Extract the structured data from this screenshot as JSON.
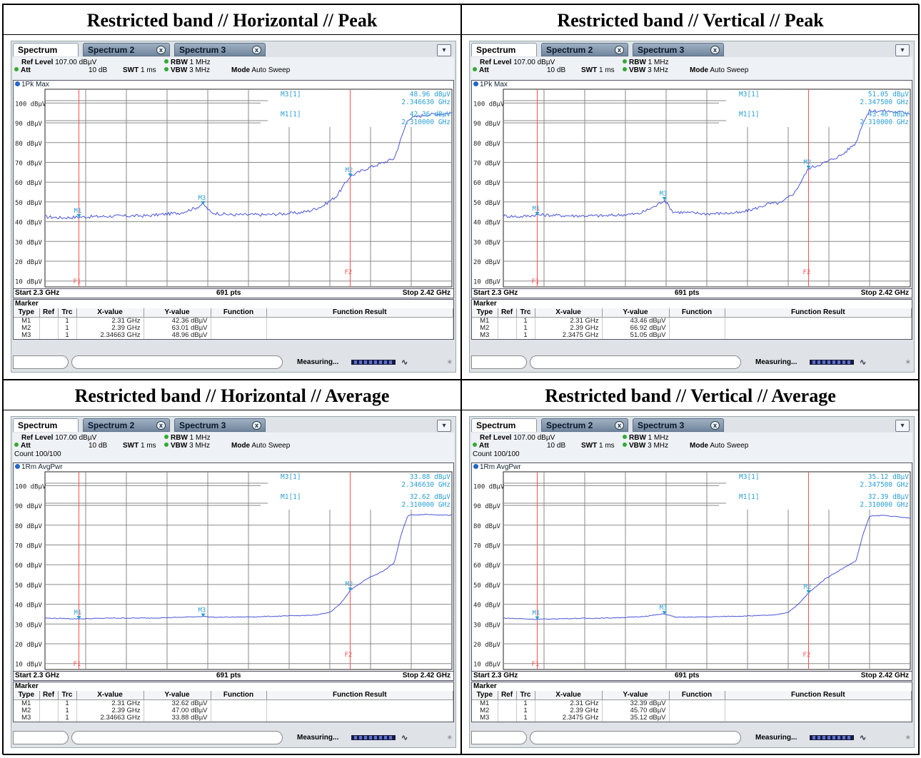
{
  "panels": [
    {
      "title": "Restricted band // Horizontal // Peak",
      "tabs": [
        "Spectrum",
        "Spectrum 2",
        "Spectrum 3"
      ],
      "ref_level": "107.00 dBµV",
      "att": "10 dB",
      "swt": "1 ms",
      "rbw": "1 MHz",
      "vbw": "3 MHz",
      "mode": "Auto Sweep",
      "count": "",
      "trace_label": "1Pk Max",
      "marker_info": [
        {
          "name": "M3[1]",
          "y": "48.96 dBµV",
          "x": "2.346630 GHz"
        },
        {
          "name": "M1[1]",
          "y": "42.36 dBµV",
          "x": "2.310000 GHz"
        }
      ],
      "start": "Start 2.3 GHz",
      "pts": "691 pts",
      "stop": "Stop 2.42 GHz",
      "marker_title": "Marker",
      "table_headers": [
        "Type",
        "Ref",
        "Trc",
        "X-value",
        "Y-value",
        "Function",
        "Function Result"
      ],
      "markers": [
        {
          "type": "M1",
          "trc": "1",
          "x": "2.31 GHz",
          "y": "42.36 dBµV"
        },
        {
          "type": "M2",
          "trc": "1",
          "x": "2.39 GHz",
          "y": "63.01 dBµV"
        },
        {
          "type": "M3",
          "trc": "1",
          "x": "2.34663 GHz",
          "y": "48.96 dBµV"
        }
      ],
      "status": "Measuring..."
    },
    {
      "title": "Restricted band // Vertical // Peak",
      "tabs": [
        "Spectrum",
        "Spectrum 2",
        "Spectrum 3"
      ],
      "ref_level": "107.00 dBµV",
      "att": "10 dB",
      "swt": "1 ms",
      "rbw": "1 MHz",
      "vbw": "3 MHz",
      "mode": "Auto Sweep",
      "count": "",
      "trace_label": "1Pk Max",
      "marker_info": [
        {
          "name": "M3[1]",
          "y": "51.05 dBµV",
          "x": "2.347500 GHz"
        },
        {
          "name": "M1[1]",
          "y": "43.46 dBµV",
          "x": "2.310000 GHz"
        }
      ],
      "start": "Start 2.3 GHz",
      "pts": "691 pts",
      "stop": "Stop 2.42 GHz",
      "marker_title": "Marker",
      "table_headers": [
        "Type",
        "Ref",
        "Trc",
        "X-value",
        "Y-value",
        "Function",
        "Function Result"
      ],
      "markers": [
        {
          "type": "M1",
          "trc": "1",
          "x": "2.31 GHz",
          "y": "43.46 dBµV"
        },
        {
          "type": "M2",
          "trc": "1",
          "x": "2.39 GHz",
          "y": "66.92 dBµV"
        },
        {
          "type": "M3",
          "trc": "1",
          "x": "2.3475 GHz",
          "y": "51.05 dBµV"
        }
      ],
      "status": "Measuring..."
    },
    {
      "title": "Restricted band // Horizontal // Average",
      "tabs": [
        "Spectrum",
        "Spectrum 2",
        "Spectrum 3"
      ],
      "ref_level": "107.00 dBµV",
      "att": "10 dB",
      "swt": "1 ms",
      "rbw": "1 MHz",
      "vbw": "3 MHz",
      "mode": "Auto Sweep",
      "count": "Count 100/100",
      "trace_label": "1Rm AvgPwr",
      "marker_info": [
        {
          "name": "M3[1]",
          "y": "33.88 dBµV",
          "x": "2.346630 GHz"
        },
        {
          "name": "M1[1]",
          "y": "32.62 dBµV",
          "x": "2.310000 GHz"
        }
      ],
      "start": "Start 2.3 GHz",
      "pts": "691 pts",
      "stop": "Stop 2.42 GHz",
      "marker_title": "Marker",
      "table_headers": [
        "Type",
        "Ref",
        "Trc",
        "X-value",
        "Y-value",
        "Function",
        "Function Result"
      ],
      "markers": [
        {
          "type": "M1",
          "trc": "1",
          "x": "2.31 GHz",
          "y": "32.62 dBµV"
        },
        {
          "type": "M2",
          "trc": "1",
          "x": "2.39 GHz",
          "y": "47.00 dBµV"
        },
        {
          "type": "M3",
          "trc": "1",
          "x": "2.34663 GHz",
          "y": "33.88 dBµV"
        }
      ],
      "status": "Measuring..."
    },
    {
      "title": "Restricted band // Vertical // Average",
      "tabs": [
        "Spectrum",
        "Spectrum 2",
        "Spectrum 3"
      ],
      "ref_level": "107.00 dBµV",
      "att": "10 dB",
      "swt": "1 ms",
      "rbw": "1 MHz",
      "vbw": "3 MHz",
      "mode": "Auto Sweep",
      "count": "Count 100/100",
      "trace_label": "1Rm AvgPwr",
      "marker_info": [
        {
          "name": "M3[1]",
          "y": "35.12 dBµV",
          "x": "2.347500 GHz"
        },
        {
          "name": "M1[1]",
          "y": "32.39 dBµV",
          "x": "2.310000 GHz"
        }
      ],
      "start": "Start 2.3 GHz",
      "pts": "691 pts",
      "stop": "Stop 2.42 GHz",
      "marker_title": "Marker",
      "table_headers": [
        "Type",
        "Ref",
        "Trc",
        "X-value",
        "Y-value",
        "Function",
        "Function Result"
      ],
      "markers": [
        {
          "type": "M1",
          "trc": "1",
          "x": "2.31 GHz",
          "y": "32.39 dBµV"
        },
        {
          "type": "M2",
          "trc": "1",
          "x": "2.39 GHz",
          "y": "45.70 dBµV"
        },
        {
          "type": "M3",
          "trc": "1",
          "x": "2.3475 GHz",
          "y": "35.12 dBµV"
        }
      ],
      "status": "Measuring..."
    }
  ],
  "colors": {
    "trace": "#4a55d8",
    "marker": "#2a9fd6",
    "line": "#ff5050",
    "grid": "#8a8a8a"
  },
  "chart_data": [
    {
      "type": "line",
      "y_tick_labels": [
        "100 dBµV",
        "90 dBµV",
        "80 dBµV",
        "70 dBµV",
        "60 dBµV",
        "50 dBµV",
        "40 dBµV",
        "30 dBµV",
        "20 dBµV",
        "10 dBµV"
      ],
      "xlim_ghz": [
        2.3,
        2.42
      ],
      "ylim_dbuv": [
        7,
        107
      ],
      "vlines": [
        {
          "label": "F1",
          "x": 2.31
        },
        {
          "label": "F2",
          "x": 2.39
        }
      ],
      "hline_markers": [
        "M3",
        "M1"
      ],
      "series": [
        {
          "x": [
            2.3,
            2.305,
            2.31,
            2.32,
            2.33,
            2.34,
            2.3445,
            2.34663,
            2.349,
            2.355,
            2.365,
            2.375,
            2.378,
            2.382,
            2.386,
            2.39,
            2.395,
            2.4,
            2.403,
            2.405,
            2.407,
            2.412,
            2.42
          ],
          "y": [
            42.5,
            42,
            42.36,
            42.8,
            43,
            44.5,
            47,
            48.96,
            44.5,
            43.5,
            43.5,
            44.5,
            45.5,
            48,
            53,
            63.01,
            67,
            70,
            72,
            82,
            92,
            94,
            95
          ]
        }
      ],
      "markers": [
        {
          "label": "M1",
          "x": 2.31,
          "y": 42.36
        },
        {
          "label": "M2",
          "x": 2.39,
          "y": 63.01
        },
        {
          "label": "M3",
          "x": 2.34663,
          "y": 48.96
        }
      ]
    },
    {
      "type": "line",
      "y_tick_labels": [
        "100 dBµV",
        "90 dBµV",
        "80 dBµV",
        "70 dBµV",
        "60 dBµV",
        "50 dBµV",
        "40 dBµV",
        "30 dBµV",
        "20 dBµV",
        "10 dBµV"
      ],
      "xlim_ghz": [
        2.3,
        2.42
      ],
      "ylim_dbuv": [
        7,
        107
      ],
      "vlines": [
        {
          "label": "F1",
          "x": 2.31
        },
        {
          "label": "F2",
          "x": 2.39
        }
      ],
      "hline_markers": [
        "M3",
        "M1"
      ],
      "series": [
        {
          "x": [
            2.3,
            2.305,
            2.31,
            2.32,
            2.33,
            2.34,
            2.345,
            2.3475,
            2.35,
            2.36,
            2.37,
            2.375,
            2.378,
            2.382,
            2.386,
            2.39,
            2.395,
            2.4,
            2.404,
            2.406,
            2.408,
            2.412,
            2.42
          ],
          "y": [
            43,
            42.5,
            43.46,
            43,
            43,
            44,
            48,
            51.05,
            45,
            44,
            44.5,
            47,
            49,
            49.5,
            55,
            66.92,
            70,
            74,
            80,
            90,
            96,
            96,
            95
          ]
        }
      ],
      "markers": [
        {
          "label": "M1",
          "x": 2.31,
          "y": 43.46
        },
        {
          "label": "M2",
          "x": 2.39,
          "y": 66.92
        },
        {
          "label": "M3",
          "x": 2.3475,
          "y": 51.05
        }
      ]
    },
    {
      "type": "line",
      "y_tick_labels": [
        "100 dBµV",
        "90 dBµV",
        "80 dBµV",
        "70 dBµV",
        "60 dBµV",
        "50 dBµV",
        "40 dBµV",
        "30 dBµV",
        "20 dBµV",
        "10 dBµV"
      ],
      "xlim_ghz": [
        2.3,
        2.42
      ],
      "ylim_dbuv": [
        7,
        107
      ],
      "vlines": [
        {
          "label": "F1",
          "x": 2.31
        },
        {
          "label": "F2",
          "x": 2.39
        }
      ],
      "hline_markers": [
        "M3",
        "M1"
      ],
      "series": [
        {
          "x": [
            2.3,
            2.31,
            2.32,
            2.33,
            2.34,
            2.34663,
            2.35,
            2.36,
            2.37,
            2.38,
            2.384,
            2.387,
            2.39,
            2.395,
            2.4,
            2.403,
            2.405,
            2.407,
            2.412,
            2.42
          ],
          "y": [
            33,
            32.62,
            33,
            33,
            33.4,
            33.88,
            33.4,
            33.6,
            34,
            34.5,
            36,
            40,
            47,
            53,
            57,
            61,
            75,
            85,
            85.5,
            85
          ]
        }
      ],
      "markers": [
        {
          "label": "M1",
          "x": 2.31,
          "y": 32.62
        },
        {
          "label": "M2",
          "x": 2.39,
          "y": 47.0
        },
        {
          "label": "M3",
          "x": 2.34663,
          "y": 33.88
        }
      ]
    },
    {
      "type": "line",
      "y_tick_labels": [
        "100 dBµV",
        "90 dBµV",
        "80 dBµV",
        "70 dBµV",
        "60 dBµV",
        "50 dBµV",
        "40 dBµV",
        "30 dBµV",
        "20 dBµV",
        "10 dBµV"
      ],
      "xlim_ghz": [
        2.3,
        2.42
      ],
      "ylim_dbuv": [
        7,
        107
      ],
      "vlines": [
        {
          "label": "F1",
          "x": 2.31
        },
        {
          "label": "F2",
          "x": 2.39
        }
      ],
      "hline_markers": [
        "M3",
        "M1"
      ],
      "series": [
        {
          "x": [
            2.3,
            2.31,
            2.32,
            2.33,
            2.34,
            2.3475,
            2.351,
            2.36,
            2.37,
            2.38,
            2.384,
            2.387,
            2.39,
            2.395,
            2.4,
            2.404,
            2.406,
            2.408,
            2.412,
            2.42
          ],
          "y": [
            33,
            32.39,
            32.8,
            33,
            33.6,
            35.12,
            33.4,
            33.6,
            34,
            34.5,
            36,
            40,
            45.7,
            53,
            58,
            62,
            75,
            84.5,
            85,
            83.5
          ]
        }
      ],
      "markers": [
        {
          "label": "M1",
          "x": 2.31,
          "y": 32.39
        },
        {
          "label": "M2",
          "x": 2.39,
          "y": 45.7
        },
        {
          "label": "M3",
          "x": 2.3475,
          "y": 35.12
        }
      ]
    }
  ]
}
